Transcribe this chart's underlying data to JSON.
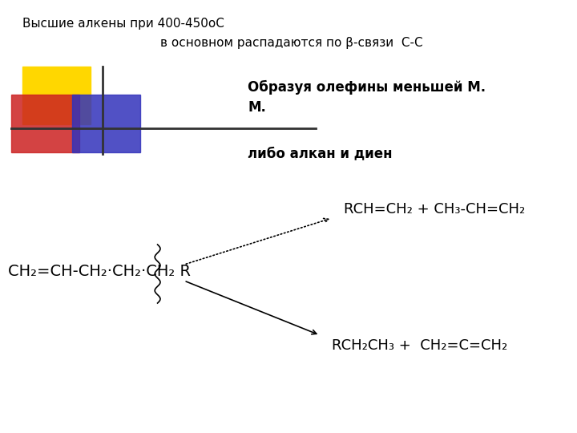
{
  "title_line1": "Высшие алкены при 400-450оС",
  "title_line2": "в основном распадаются по β-связи  С-С",
  "bold_text1": "Образуя олефины меньшей М.\nМ.",
  "bold_text2": "либо алкан и диен",
  "formula_main": "CH₂=CH-CH₂·CH₂·CH₂ R",
  "formula_top": "RCH=CH₂ + CH₃-CH=CH₂",
  "formula_bottom": "RCH₂CH₃ +  CH₂=C=CH₂",
  "bg_color": "#ffffff",
  "yellow_color": "#FFD700",
  "red_color": "#CC2222",
  "blue_color": "#3333BB"
}
